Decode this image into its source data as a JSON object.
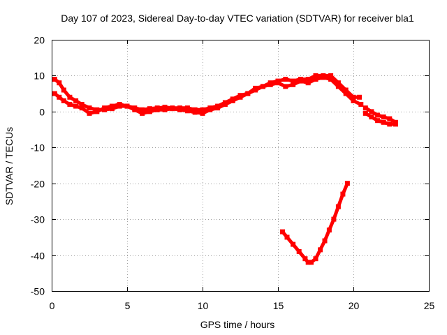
{
  "chart_data": {
    "type": "scatter",
    "title": "Day 107 of 2023, Sidereal Day-to-day VTEC variation (SDTVAR) for receiver bla1",
    "xlabel": "GPS time / hours",
    "ylabel": "SDTVAR / TECUs",
    "xlim": [
      0,
      25
    ],
    "ylim": [
      -50,
      20
    ],
    "xticks": [
      "0",
      "5",
      "10",
      "15",
      "20",
      "25"
    ],
    "yticks": [
      "-50",
      "-40",
      "-30",
      "-20",
      "-10",
      "0",
      "10",
      "20"
    ],
    "grid": true,
    "color": "#ff0000",
    "series": [
      {
        "name": "segment-1",
        "x": [
          0.2,
          0.5,
          0.8,
          1.2,
          1.6,
          2.0,
          2.5,
          3.0,
          3.5,
          4.0,
          4.5,
          5.0,
          5.5,
          6.0,
          6.5,
          7.0,
          7.5,
          8.0,
          8.5,
          9.0,
          9.5,
          10.0,
          10.5,
          11.0,
          11.5,
          12.0,
          12.5,
          13.0,
          13.5,
          14.0,
          14.5,
          15.0,
          15.5,
          16.0,
          16.5,
          17.0,
          17.5,
          18.0,
          18.5,
          19.0,
          19.5,
          20.0,
          20.4
        ],
        "y": [
          9,
          8,
          6,
          4,
          3,
          2,
          1,
          0.5,
          0.5,
          0.8,
          1.5,
          1.5,
          1,
          0.5,
          0.8,
          1,
          1.2,
          1,
          1,
          1,
          0.5,
          0.5,
          1,
          1.5,
          2.5,
          3.5,
          4.5,
          5,
          6.5,
          7,
          8,
          8.5,
          9,
          8.5,
          9,
          9,
          10,
          10,
          10,
          8,
          6,
          4,
          4
        ]
      },
      {
        "name": "segment-2",
        "x": [
          0.2,
          0.5,
          0.8,
          1.2,
          1.6,
          2.0,
          2.5,
          3.0,
          3.5,
          4.0,
          4.5,
          5.0,
          5.5,
          6.0,
          6.5,
          7.0,
          7.5,
          8.0,
          8.5,
          9.0,
          9.5,
          10.0,
          10.5,
          11.0,
          11.5,
          12.0,
          12.5,
          13.0,
          13.5,
          14.0,
          14.5,
          15.0,
          15.5,
          16.0,
          16.5,
          17.0,
          17.5,
          18.0,
          18.5,
          19.0,
          19.5,
          20.0,
          20.5
        ],
        "y": [
          5,
          4,
          3,
          2,
          1.5,
          1,
          -0.5,
          0,
          1,
          1.5,
          2,
          1.5,
          0.5,
          -0.5,
          0,
          0.5,
          0.5,
          0.8,
          0.5,
          0.2,
          -0.2,
          -0.5,
          0.5,
          1,
          2,
          3,
          4,
          5,
          6,
          7,
          7.5,
          8,
          7,
          7.5,
          8.5,
          8,
          9,
          9.5,
          9,
          7,
          5,
          3,
          2
        ]
      },
      {
        "name": "segment-3",
        "x": [
          20.8,
          21.2,
          21.6,
          22.0,
          22.4,
          22.8
        ],
        "y": [
          1,
          0,
          -1,
          -1.5,
          -2,
          -3
        ]
      },
      {
        "name": "segment-4",
        "x": [
          20.8,
          21.2,
          21.6,
          22.0,
          22.4,
          22.8
        ],
        "y": [
          -0.5,
          -1.5,
          -2.5,
          -3,
          -3.5,
          -3.5
        ]
      },
      {
        "name": "segment-5",
        "x": [
          15.3,
          15.6,
          16.0,
          16.4,
          16.8,
          17.0,
          17.2,
          17.5,
          17.8,
          18.1,
          18.4,
          18.7,
          19.0,
          19.3,
          19.6
        ],
        "y": [
          -33.5,
          -35,
          -37,
          -39,
          -41,
          -42,
          -42,
          -41,
          -38.5,
          -36,
          -33,
          -30,
          -26.5,
          -23,
          -20
        ]
      }
    ]
  }
}
